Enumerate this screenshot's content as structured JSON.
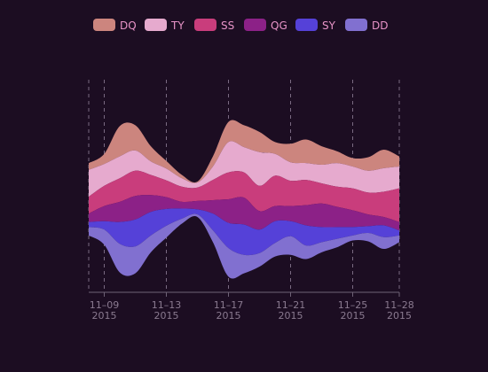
{
  "chart_data": {
    "type": "area",
    "subtype": "streamgraph",
    "title": "",
    "xlabel": "",
    "ylabel": "",
    "legend_position": "top",
    "grid": true,
    "x": [
      "2015-11-08",
      "2015-11-09",
      "2015-11-10",
      "2015-11-11",
      "2015-11-12",
      "2015-11-13",
      "2015-11-14",
      "2015-11-15",
      "2015-11-16",
      "2015-11-17",
      "2015-11-18",
      "2015-11-19",
      "2015-11-20",
      "2015-11-21",
      "2015-11-22",
      "2015-11-23",
      "2015-11-24",
      "2015-11-25",
      "2015-11-26",
      "2015-11-27",
      "2015-11-28"
    ],
    "x_ticks": [
      {
        "date": "2015-11-09",
        "line1": "11–09",
        "line2": "2015"
      },
      {
        "date": "2015-11-13",
        "line1": "11–13",
        "line2": "2015"
      },
      {
        "date": "2015-11-17",
        "line1": "11–17",
        "line2": "2015"
      },
      {
        "date": "2015-11-21",
        "line1": "11–21",
        "line2": "2015"
      },
      {
        "date": "2015-11-25",
        "line1": "11–25",
        "line2": "2015"
      },
      {
        "date": "2015-11-28",
        "line1": "11–28",
        "line2": "2015"
      }
    ],
    "series": [
      {
        "name": "DQ",
        "color": "#cc857e",
        "values": [
          8,
          12,
          36,
          30,
          18,
          9,
          4,
          1,
          12,
          24,
          26,
          24,
          14,
          22,
          28,
          22,
          14,
          10,
          16,
          22,
          12
        ]
      },
      {
        "name": "TY",
        "color": "#e6aace",
        "values": [
          32,
          26,
          26,
          24,
          16,
          14,
          10,
          6,
          16,
          36,
          30,
          40,
          26,
          22,
          20,
          22,
          28,
          26,
          26,
          28,
          26
        ]
      },
      {
        "name": "SS",
        "color": "#c93d7c",
        "values": [
          20,
          24,
          28,
          30,
          24,
          20,
          18,
          16,
          24,
          32,
          30,
          30,
          36,
          30,
          30,
          24,
          24,
          26,
          26,
          30,
          40
        ]
      },
      {
        "name": "QG",
        "color": "#8c2187",
        "values": [
          10,
          18,
          24,
          28,
          20,
          14,
          8,
          10,
          16,
          28,
          32,
          22,
          18,
          18,
          24,
          28,
          24,
          20,
          14,
          10,
          10
        ]
      },
      {
        "name": "SY",
        "color": "#5541d8",
        "values": [
          6,
          10,
          26,
          32,
          28,
          20,
          12,
          6,
          20,
          30,
          36,
          28,
          26,
          18,
          24,
          18,
          14,
          10,
          8,
          14,
          6
        ]
      },
      {
        "name": "DD",
        "color": "#8170d0",
        "values": [
          10,
          18,
          34,
          32,
          20,
          14,
          6,
          3,
          14,
          34,
          22,
          16,
          16,
          22,
          16,
          12,
          10,
          6,
          10,
          14,
          8
        ]
      }
    ]
  }
}
